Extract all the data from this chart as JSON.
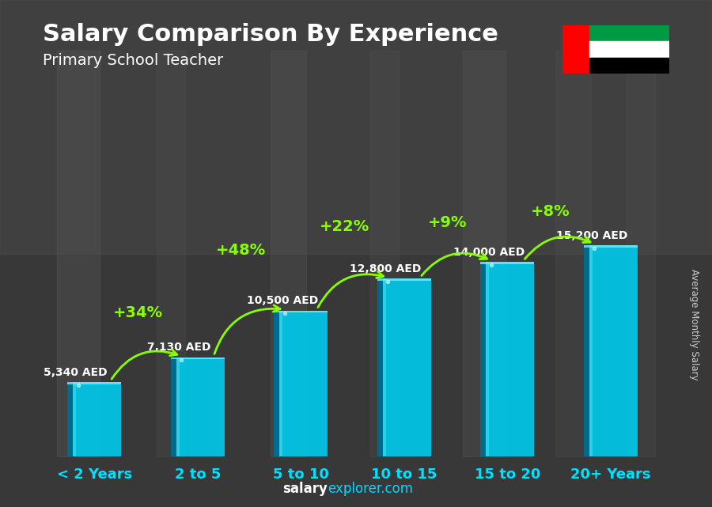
{
  "title": "Salary Comparison By Experience",
  "subtitle": "Primary School Teacher",
  "categories": [
    "< 2 Years",
    "2 to 5",
    "5 to 10",
    "10 to 15",
    "15 to 20",
    "20+ Years"
  ],
  "values": [
    5340,
    7130,
    10500,
    12800,
    14000,
    15200
  ],
  "value_labels": [
    "5,340 AED",
    "7,130 AED",
    "10,500 AED",
    "12,800 AED",
    "14,000 AED",
    "15,200 AED"
  ],
  "pct_labels": [
    "+34%",
    "+48%",
    "+22%",
    "+9%",
    "+8%"
  ],
  "bar_color_main": "#00c8e8",
  "bar_color_light": "#40e0f0",
  "bar_color_dark": "#0088aa",
  "bar_color_side": "#006688",
  "title_color": "#ffffff",
  "subtitle_color": "#ffffff",
  "value_color": "#ffffff",
  "pct_color": "#88ff00",
  "xlabel_color": "#00e0ff",
  "bg_color": "#3a3a3a",
  "ylabel_text": "Average Monthly Salary",
  "footer_salary": "salary",
  "footer_explorer": "explorer.com",
  "ylim": [
    0,
    19000
  ],
  "bar_width": 0.52,
  "flag_colors": {
    "red": "#FF0000",
    "green": "#009A44",
    "white": "#FFFFFF",
    "black": "#000000"
  }
}
